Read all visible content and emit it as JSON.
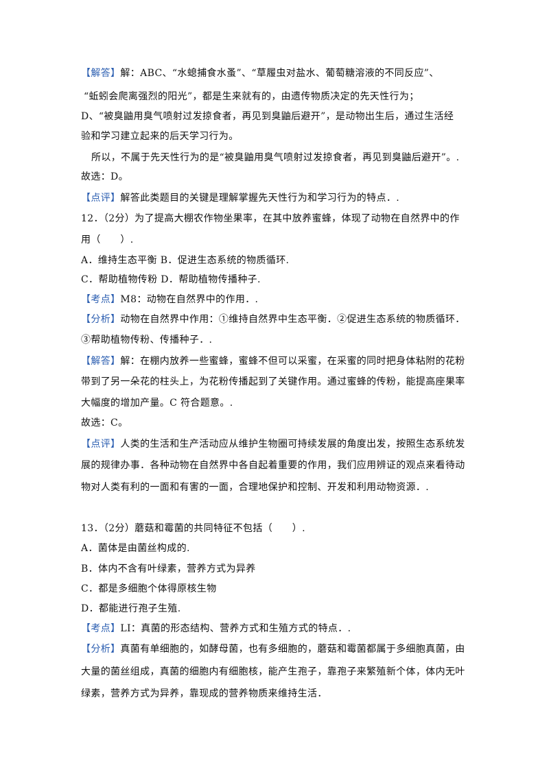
{
  "lines": [
    {
      "tag": "【解答】",
      "text": "解：ABC、“水螅捕食水蚤”、“草履虫对盐水、葡萄糖溶液的不同反应”、"
    },
    {
      "text": "“蚯蚓会爬离强烈的阳光”，都是生来就有的，由遗传物质决定的先天性行为；"
    },
    {
      "text": "D、“被臭鼬用臭气喷射过发掠食者，再见到臭鼬后避开”，是动物出生后，通过生活经"
    },
    {
      "text": "验和学习建立起来的后天学习行为。"
    },
    {
      "text": "所以，不属于先天性行为的是“被臭鼬用臭气喷射过发掠食者，再见到臭鼬后避开”。."
    },
    {
      "text": "故选：D。"
    },
    {
      "tag": "【点评】",
      "text": "解答此类题目的关键是理解掌握先天性行为和学习行为的特点．."
    },
    {
      "text": "12．（2分）为了提高大棚农作物坐果率，在其中放养蜜蜂，体现了动物在自然界中的作"
    },
    {
      "text": "用（　　）."
    },
    {
      "text": "A．维持生态平衡 B．促进生态系统的物质循环."
    },
    {
      "text": "C．帮助植物传粉 D．帮助植物传播种子."
    },
    {
      "tag": "【考点】",
      "text": "M8：动物在自然界中的作用．."
    },
    {
      "tag": "【分析】",
      "text": "动物在自然界中作用：①维持自然界中生态平衡．②促进生态系统的物质循环．"
    },
    {
      "text": "③帮助植物传粉、传播种子．."
    },
    {
      "tag": "【解答】",
      "text": "解：在棚内放养一些蜜蜂，蜜蜂不但可以采蜜，在采蜜的同时把身体粘附的花粉"
    },
    {
      "text": "带到了另一朵花的柱头上，为花粉传播起到了关键作用。通过蜜蜂的传粉，能提高座果率"
    },
    {
      "text": "大幅度的增加产量。C 符合题意。."
    },
    {
      "text": "故选：C。"
    },
    {
      "tag": "【点评】",
      "text": "人类的生活和生产活动应从维护生物圈可持续发展的角度出发，按照生态系统发"
    },
    {
      "text": "展的规律办事．各种动物在自然界中各自起着重要的作用，我们应用辨证的观点来看待动"
    },
    {
      "text": "物对人类有利的一面和有害的一面，合理地保护和控制、开发和利用动物资源．."
    },
    {
      "text": "13．（2分）蘑菇和霉菌的共同特征不包括（　　）."
    },
    {
      "text": "A．菌体是由菌丝构成的."
    },
    {
      "text": "B．体内不含有叶绿素，营养方式为异养"
    },
    {
      "text": "C．都是多细胞个体得原核生物"
    },
    {
      "text": "D．都能进行孢子生殖."
    },
    {
      "tag": "【考点】",
      "text": "LI：真菌的形态结构、营养方式和生殖方式的特点．."
    },
    {
      "tag": "【分析】",
      "text": "真菌有单细胞的，如酵母菌，也有多细胞的，蘑菇和霉菌都属于多细胞真菌，由"
    },
    {
      "text": "大量的菌丝组成，真菌的细胞内有细胞核，能产生孢子，靠孢子来繁殖新个体，体内无叶"
    },
    {
      "text": "绿素，营养方式为异养，靠现成的营养物质来维持生活．"
    }
  ]
}
